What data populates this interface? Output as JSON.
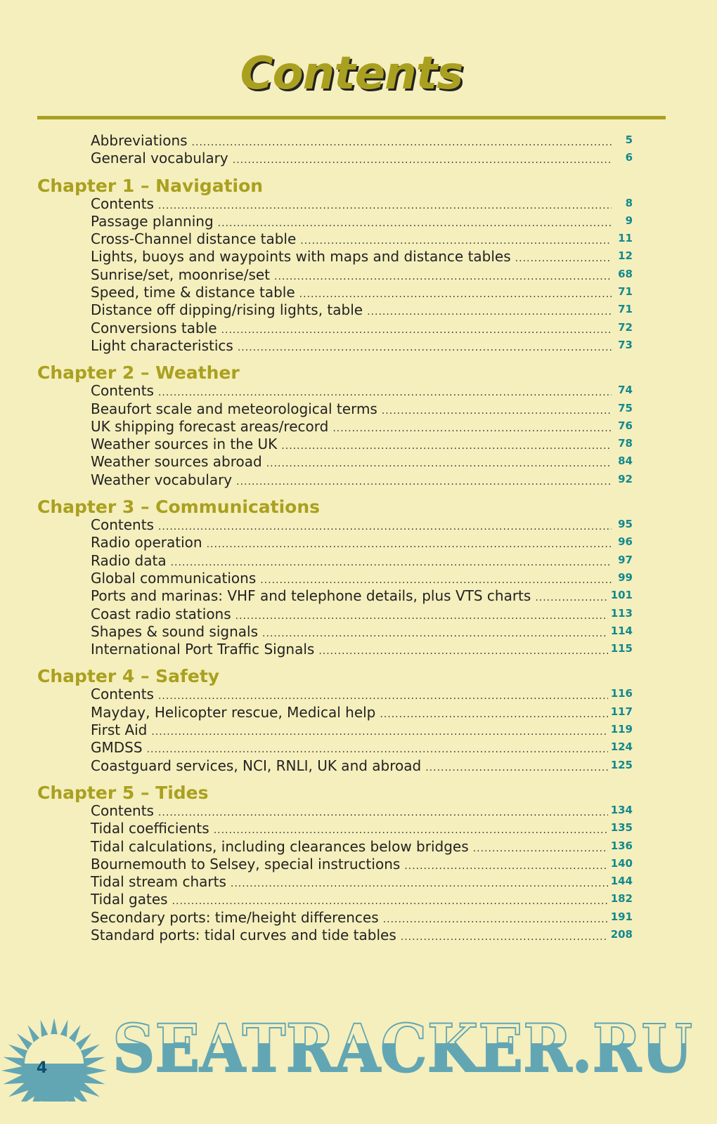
{
  "title": "Contents",
  "intro": [
    {
      "label": "Abbreviations",
      "page": "5"
    },
    {
      "label": "General vocabulary",
      "page": "6"
    }
  ],
  "chapters": [
    {
      "heading": "Chapter 1 – Navigation",
      "entries": [
        {
          "label": "Contents",
          "page": "8"
        },
        {
          "label": "Passage planning",
          "page": "9"
        },
        {
          "label": "Cross-Channel distance table",
          "page": "11"
        },
        {
          "label": "Lights, buoys and waypoints with maps and distance tables",
          "page": "12"
        },
        {
          "label": "Sunrise/set, moonrise/set",
          "page": "68"
        },
        {
          "label": "Speed, time & distance table",
          "page": "71"
        },
        {
          "label": "Distance off dipping/rising lights, table",
          "page": "71"
        },
        {
          "label": "Conversions table",
          "page": "72"
        },
        {
          "label": "Light characteristics",
          "page": "73"
        }
      ]
    },
    {
      "heading": "Chapter 2 – Weather",
      "entries": [
        {
          "label": "Contents",
          "page": "74"
        },
        {
          "label": "Beaufort scale and meteorological terms",
          "page": "75"
        },
        {
          "label": "UK shipping forecast areas/record",
          "page": "76"
        },
        {
          "label": "Weather sources in the UK",
          "page": "78"
        },
        {
          "label": "Weather sources abroad",
          "page": "84"
        },
        {
          "label": "Weather vocabulary",
          "page": "92"
        }
      ]
    },
    {
      "heading": "Chapter 3 – Communications",
      "entries": [
        {
          "label": "Contents",
          "page": "95"
        },
        {
          "label": "Radio operation",
          "page": "96"
        },
        {
          "label": "Radio data",
          "page": "97"
        },
        {
          "label": "Global communications",
          "page": "99"
        },
        {
          "label": "Ports and marinas: VHF and telephone details, plus VTS charts",
          "page": "101"
        },
        {
          "label": "Coast radio stations",
          "page": "113"
        },
        {
          "label": "Shapes & sound signals",
          "page": "114"
        },
        {
          "label": "International Port Traffic Signals",
          "page": "115"
        }
      ]
    },
    {
      "heading": "Chapter 4 – Safety",
      "entries": [
        {
          "label": "Contents",
          "page": "116"
        },
        {
          "label": "Mayday, Helicopter rescue, Medical help",
          "page": "117"
        },
        {
          "label": "First Aid",
          "page": "119"
        },
        {
          "label": "GMDSS",
          "page": "124"
        },
        {
          "label": "Coastguard services, NCI, RNLI, UK and abroad",
          "page": "125"
        }
      ]
    },
    {
      "heading": "Chapter 5 – Tides",
      "entries": [
        {
          "label": "Contents",
          "page": "134"
        },
        {
          "label": "Tidal coefficients",
          "page": "135"
        },
        {
          "label": "Tidal calculations, including clearances below bridges",
          "page": "136"
        },
        {
          "label": "Bournemouth to Selsey, special instructions",
          "page": "140"
        },
        {
          "label": "Tidal stream charts",
          "page": "144"
        },
        {
          "label": "Tidal gates",
          "page": "182"
        },
        {
          "label": "Secondary ports: time/height differences",
          "page": "191"
        },
        {
          "label": "Standard ports: tidal curves and tide tables",
          "page": "208"
        }
      ]
    }
  ],
  "page_number": "4",
  "watermark": "SEATRACKER.RU",
  "colors": {
    "accent": "#aaa020",
    "page_numbers": "#12898e",
    "background": "#f5efbd",
    "watermark": "#62a6b4"
  }
}
